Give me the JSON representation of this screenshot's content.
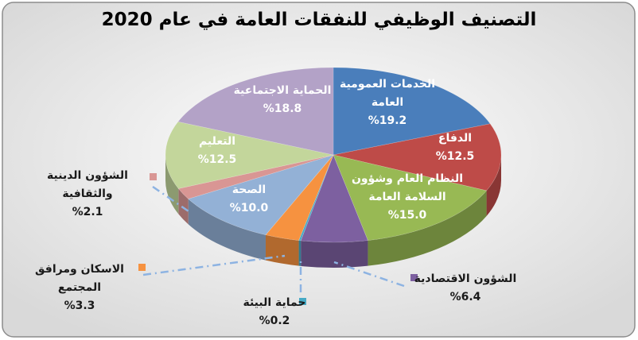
{
  "chart_data": {
    "type": "pie",
    "title": "التصنيف الوظيفي للنفقات العامة في عام 2020",
    "categories": [
      "الخدمات العمومية العامة",
      "الدفاع",
      "النظام العام وشؤون السلامة العامة",
      "الشؤون الاقتصادية",
      "حماية البيئة",
      "الاسكان ومرافق المجتمع",
      "الصحة",
      "الشؤون الدينية والثقافية",
      "التعليم",
      "الحماية الاجتماعية"
    ],
    "values": [
      19.2,
      12.5,
      15.0,
      6.4,
      0.2,
      3.3,
      10.0,
      2.1,
      12.5,
      18.8
    ],
    "value_labels": [
      "%19.2",
      "%12.5",
      "%15.0",
      "%6.4",
      "%0.2",
      "%3.3",
      "%10.0",
      "%2.1",
      "%12.5",
      "%18.8"
    ],
    "colors": [
      "#4a7ebb",
      "#be4b48",
      "#98b954",
      "#7d60a0",
      "#46aac5",
      "#f69240",
      "#93b1d6",
      "#d99694",
      "#c3d69b",
      "#b3a2c7"
    ]
  }
}
